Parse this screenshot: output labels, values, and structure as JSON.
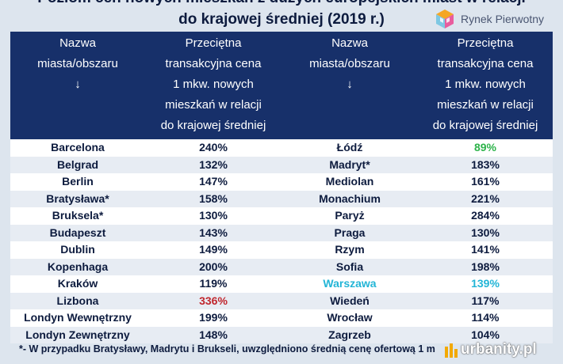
{
  "title": {
    "line1": "Poziom cen nowych mieszkań z dużych europejskich miast w relacji",
    "line2": "do krajowej średniej (2019 r.)"
  },
  "logo": {
    "text": "Rynek Pierwotny"
  },
  "headers": {
    "city": [
      "Nazwa",
      "miasta/obszaru",
      "↓"
    ],
    "price": [
      "Przeciętna",
      "transakcyjna cena",
      "1 mkw. nowych",
      "mieszkań w relacji",
      "do krajowej średniej"
    ]
  },
  "colors": {
    "header_bg": "#17306a",
    "highlight_red": "#c0262d",
    "highlight_green": "#2db34a",
    "highlight_cyan": "#22b5d6"
  },
  "rows_left": [
    {
      "city": "Barcelona",
      "value": "240%",
      "highlight": ""
    },
    {
      "city": "Belgrad",
      "value": "132%",
      "highlight": ""
    },
    {
      "city": "Berlin",
      "value": "147%",
      "highlight": ""
    },
    {
      "city": "Bratysława*",
      "value": "158%",
      "highlight": ""
    },
    {
      "city": "Bruksela*",
      "value": "130%",
      "highlight": ""
    },
    {
      "city": "Budapeszt",
      "value": "143%",
      "highlight": ""
    },
    {
      "city": "Dublin",
      "value": "149%",
      "highlight": ""
    },
    {
      "city": "Kopenhaga",
      "value": "200%",
      "highlight": ""
    },
    {
      "city": "Kraków",
      "value": "119%",
      "highlight": ""
    },
    {
      "city": "Lizbona",
      "value": "336%",
      "highlight": "value-red"
    },
    {
      "city": "Londyn Wewnętrzny",
      "value": "199%",
      "highlight": ""
    },
    {
      "city": "Londyn Zewnętrzny",
      "value": "148%",
      "highlight": ""
    }
  ],
  "rows_right": [
    {
      "city": "Łódź",
      "value": "89%",
      "highlight": "value-green"
    },
    {
      "city": "Madryt*",
      "value": "183%",
      "highlight": ""
    },
    {
      "city": "Mediolan",
      "value": "161%",
      "highlight": ""
    },
    {
      "city": "Monachium",
      "value": "221%",
      "highlight": ""
    },
    {
      "city": "Paryż",
      "value": "284%",
      "highlight": ""
    },
    {
      "city": "Praga",
      "value": "130%",
      "highlight": ""
    },
    {
      "city": "Rzym",
      "value": "141%",
      "highlight": ""
    },
    {
      "city": "Sofia",
      "value": "198%",
      "highlight": ""
    },
    {
      "city": "Warszawa",
      "value": "139%",
      "highlight": "both-cyan"
    },
    {
      "city": "Wiedeń",
      "value": "117%",
      "highlight": ""
    },
    {
      "city": "Wrocław",
      "value": "114%",
      "highlight": ""
    },
    {
      "city": "Zagrzeb",
      "value": "104%",
      "highlight": ""
    }
  ],
  "footnote": "*- W przypadku Bratysławy, Madrytu i Brukseli, uwzględniono średnią cenę ofertową 1 m",
  "watermark": {
    "text": "urbanity.pl"
  }
}
